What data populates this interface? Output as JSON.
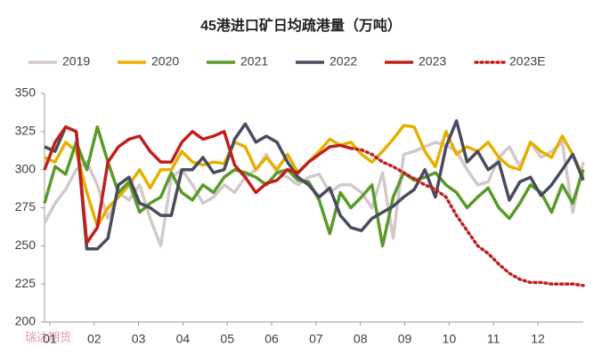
{
  "chart_data": {
    "type": "line",
    "title": "45港进口矿日均疏港量（万吨）",
    "logo": "瑞达期货",
    "x": [
      1,
      2,
      3,
      4,
      5,
      6,
      7,
      8,
      9,
      10,
      11,
      12,
      13,
      14,
      15,
      16,
      17,
      18,
      19,
      20,
      21,
      22,
      23,
      24,
      25,
      26,
      27,
      28,
      29,
      30,
      31,
      32,
      33,
      34,
      35,
      36,
      37,
      38,
      39,
      40,
      41,
      42,
      43,
      44,
      45,
      46,
      47,
      48,
      49,
      50,
      51,
      52
    ],
    "xlim": [
      1,
      52
    ],
    "xticks": [
      {
        "value": 1.5,
        "label": "01"
      },
      {
        "value": 5.7,
        "label": "02"
      },
      {
        "value": 9.9,
        "label": "03"
      },
      {
        "value": 14.1,
        "label": "04"
      },
      {
        "value": 18.3,
        "label": "05"
      },
      {
        "value": 22.5,
        "label": "06"
      },
      {
        "value": 26.7,
        "label": "07"
      },
      {
        "value": 30.9,
        "label": "08"
      },
      {
        "value": 35.1,
        "label": "09"
      },
      {
        "value": 39.3,
        "label": "10"
      },
      {
        "value": 43.5,
        "label": "11"
      },
      {
        "value": 47.7,
        "label": "12"
      }
    ],
    "ylim": [
      200,
      350
    ],
    "yticks": [
      200,
      225,
      250,
      275,
      300,
      325,
      350
    ],
    "series": [
      {
        "name": "2019",
        "color": "#d3c9cb",
        "dash": "solid",
        "values": [
          265,
          278,
          287,
          300,
          305,
          290,
          268,
          285,
          280,
          290,
          268,
          250,
          295,
          300,
          290,
          278,
          282,
          290,
          285,
          295,
          300,
          310,
          298,
          295,
          290,
          295,
          297,
          285,
          290,
          290,
          285,
          275,
          298,
          255,
          310,
          312,
          315,
          318,
          316,
          312,
          300,
          290,
          292,
          308,
          315,
          302,
          318,
          308,
          312,
          318,
          272,
          305
        ]
      },
      {
        "name": "2020",
        "color": "#e6b000",
        "dash": "solid",
        "values": [
          308,
          305,
          318,
          312,
          285,
          263,
          275,
          282,
          290,
          300,
          288,
          300,
          300,
          312,
          305,
          303,
          305,
          304,
          318,
          315,
          300,
          308,
          300,
          310,
          298,
          305,
          312,
          320,
          316,
          318,
          310,
          305,
          312,
          320,
          329,
          328,
          312,
          302,
          325,
          310,
          315,
          312,
          318,
          308,
          302,
          300,
          318,
          312,
          308,
          322,
          310,
          295
        ]
      },
      {
        "name": "2021",
        "color": "#5a9a2a",
        "dash": "solid",
        "values": [
          278,
          302,
          297,
          318,
          300,
          328,
          305,
          285,
          292,
          272,
          278,
          282,
          298,
          285,
          280,
          290,
          285,
          295,
          300,
          298,
          295,
          290,
          298,
          300,
          293,
          292,
          280,
          258,
          285,
          275,
          282,
          290,
          250,
          282,
          298,
          293,
          295,
          298,
          290,
          285,
          275,
          282,
          288,
          275,
          268,
          278,
          290,
          285,
          272,
          290,
          278,
          300
        ]
      },
      {
        "name": "2022",
        "color": "#4a4b5e",
        "dash": "solid",
        "values": [
          315,
          312,
          328,
          325,
          248,
          248,
          255,
          290,
          295,
          278,
          275,
          270,
          270,
          300,
          300,
          308,
          298,
          300,
          320,
          330,
          318,
          322,
          318,
          305,
          295,
          290,
          282,
          288,
          270,
          262,
          260,
          268,
          272,
          276,
          282,
          287,
          300,
          282,
          315,
          332,
          305,
          312,
          300,
          305,
          280,
          292,
          295,
          283,
          290,
          300,
          310,
          293
        ]
      },
      {
        "name": "2023",
        "color": "#c0201c",
        "dash": "solid",
        "values": [
          300,
          318,
          328,
          325,
          252,
          262,
          305,
          315,
          320,
          322,
          312,
          305,
          305,
          318,
          325,
          320,
          322,
          325,
          303,
          295,
          285,
          291,
          293,
          300,
          298,
          305,
          310,
          315,
          316,
          314,
          null,
          null,
          null,
          null,
          null,
          null,
          null,
          null,
          null,
          null,
          null,
          null,
          null,
          null,
          null,
          null,
          null,
          null,
          null,
          null,
          null,
          null
        ]
      },
      {
        "name": "2023E",
        "color": "#c0201c",
        "dash": "dotted",
        "values": [
          null,
          null,
          null,
          null,
          null,
          null,
          null,
          null,
          null,
          null,
          null,
          null,
          null,
          null,
          null,
          null,
          null,
          null,
          null,
          null,
          null,
          null,
          null,
          null,
          null,
          null,
          null,
          null,
          null,
          314,
          313,
          310,
          305,
          302,
          298,
          294,
          290,
          287,
          282,
          270,
          260,
          250,
          245,
          238,
          232,
          228,
          226,
          226,
          225,
          225,
          225,
          224
        ]
      }
    ]
  }
}
